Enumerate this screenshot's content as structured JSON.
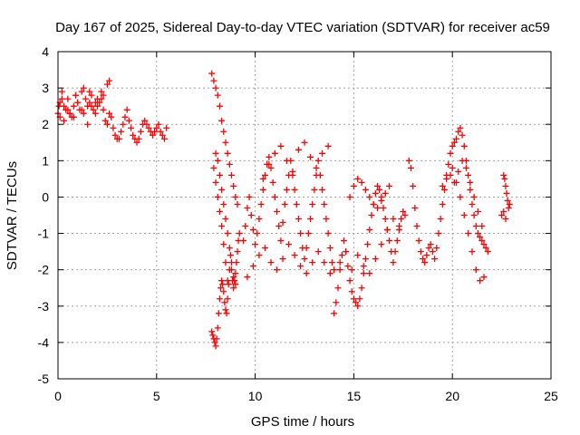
{
  "chart_data": {
    "type": "scatter",
    "title": "Day 167 of 2025, Sidereal Day-to-day VTEC variation (SDTVAR) for receiver ac59",
    "xlabel": "GPS time / hours",
    "ylabel": "SDTVAR / TECUs",
    "xlim": [
      0,
      25
    ],
    "ylim": [
      -5,
      4
    ],
    "xticks": [
      "0",
      "5",
      "10",
      "15",
      "20",
      "25"
    ],
    "yticks": [
      "-5",
      "-4",
      "-3",
      "-2",
      "-1",
      "0",
      "1",
      "2",
      "3",
      "4"
    ],
    "grid": true,
    "marker": "+",
    "color": "#ff0000",
    "series": [
      {
        "name": "SDTVAR",
        "x": [
          0.0,
          0.1,
          0.2,
          0.3,
          0.4,
          0.5,
          0.6,
          0.7,
          0.8,
          0.9,
          1.0,
          1.1,
          1.2,
          1.3,
          1.4,
          1.5,
          1.6,
          1.7,
          1.8,
          1.9,
          2.0,
          2.1,
          2.2,
          2.3,
          2.4,
          2.5,
          2.6,
          2.7,
          2.8,
          2.9,
          3.0,
          3.1,
          3.2,
          3.3,
          3.4,
          3.5,
          3.6,
          3.7,
          3.8,
          3.9,
          4.0,
          4.1,
          4.2,
          4.3,
          4.4,
          4.5,
          4.6,
          4.7,
          4.8,
          4.9,
          5.0,
          5.1,
          5.2,
          5.3,
          5.4,
          5.5,
          0.1,
          0.3,
          0.5,
          0.8,
          1.0,
          1.3,
          1.5,
          1.7,
          2.0,
          2.2,
          2.5,
          2.6,
          0.05,
          0.2,
          0.6,
          0.9,
          1.2,
          1.6,
          1.9,
          2.3,
          7.8,
          7.85,
          7.9,
          7.95,
          8.0,
          8.05,
          8.1,
          8.15,
          8.2,
          8.25,
          8.3,
          8.35,
          8.4,
          8.45,
          8.5,
          8.55,
          8.6,
          8.65,
          8.7,
          8.75,
          8.8,
          8.85,
          8.9,
          8.95,
          9.0,
          9.05,
          9.1,
          9.15,
          9.2,
          8.0,
          8.1,
          8.2,
          8.3,
          8.4,
          8.5,
          8.6,
          8.7,
          8.8,
          8.9,
          9.0,
          7.9,
          8.0,
          8.1,
          8.2,
          8.3,
          8.4,
          8.5,
          8.6,
          7.8,
          7.9,
          8.0,
          8.1,
          8.2,
          8.3,
          8.4,
          8.5,
          8.6,
          8.7,
          8.8,
          8.9,
          9.0,
          9.1,
          9.4,
          9.5,
          9.6,
          9.7,
          9.8,
          9.9,
          10.0,
          10.1,
          10.2,
          10.3,
          10.4,
          10.5,
          10.6,
          10.7,
          10.8,
          10.9,
          11.0,
          11.1,
          11.2,
          11.3,
          11.4,
          11.5,
          11.6,
          11.7,
          11.8,
          11.9,
          12.0,
          12.1,
          12.2,
          12.3,
          12.4,
          12.5,
          12.6,
          12.7,
          12.8,
          12.9,
          13.0,
          13.1,
          13.2,
          13.3,
          13.4,
          13.5,
          13.6,
          13.7,
          13.8,
          13.9,
          14.0,
          9.6,
          9.9,
          10.2,
          10.5,
          10.8,
          11.1,
          11.4,
          11.7,
          12.0,
          12.3,
          12.6,
          12.9,
          13.2,
          13.5,
          13.8,
          10.4,
          10.7,
          11.0,
          11.3,
          11.6,
          11.9,
          12.2,
          12.5,
          12.8,
          13.1,
          13.4,
          13.7,
          14.0,
          14.1,
          14.2,
          14.3,
          14.4,
          14.5,
          14.6,
          14.7,
          14.8,
          14.9,
          15.0,
          15.1,
          15.2,
          15.3,
          15.4,
          15.5,
          15.6,
          15.7,
          15.8,
          15.9,
          16.0,
          16.1,
          16.2,
          16.3,
          16.4,
          16.5,
          16.6,
          16.7,
          16.8,
          16.9,
          17.0,
          17.1,
          17.2,
          17.3,
          17.4,
          17.5,
          17.6,
          14.3,
          14.6,
          14.9,
          15.2,
          15.5,
          15.8,
          16.1,
          16.4,
          16.7,
          17.0,
          17.3,
          14.8,
          15.0,
          15.2,
          15.4,
          15.6,
          15.8,
          16.0,
          16.2,
          16.4,
          16.6,
          16.8,
          17.8,
          17.9,
          18.0,
          18.1,
          18.2,
          18.3,
          18.4,
          18.5,
          18.6,
          18.7,
          18.8,
          18.9,
          19.0,
          19.1,
          19.2,
          19.3,
          19.4,
          19.5,
          19.6,
          19.7,
          19.8,
          19.9,
          20.0,
          20.1,
          20.2,
          20.3,
          20.4,
          20.5,
          20.6,
          20.7,
          20.8,
          20.9,
          21.0,
          21.1,
          21.2,
          21.3,
          21.4,
          21.5,
          21.6,
          21.7,
          21.8,
          19.5,
          19.7,
          19.9,
          20.1,
          20.3,
          20.5,
          20.7,
          20.9,
          21.1,
          21.3,
          21.5,
          20.0,
          20.2,
          20.4,
          20.6,
          20.8,
          21.0,
          21.2,
          21.4,
          21.6,
          22.6,
          22.65,
          22.7,
          22.75,
          22.8,
          22.85,
          22.9,
          22.5,
          22.6,
          22.7
        ],
        "y": [
          2.3,
          2.6,
          2.9,
          2.5,
          2.4,
          2.7,
          2.3,
          2.2,
          2.5,
          2.8,
          2.6,
          2.4,
          2.9,
          3.0,
          2.7,
          2.5,
          2.6,
          2.8,
          2.4,
          2.3,
          2.5,
          2.6,
          2.7,
          2.4,
          2.1,
          2.0,
          2.3,
          2.2,
          1.9,
          1.7,
          1.6,
          1.6,
          1.8,
          2.0,
          2.2,
          2.4,
          2.1,
          1.9,
          1.7,
          1.6,
          1.5,
          1.6,
          1.8,
          2.0,
          2.1,
          2.0,
          1.9,
          1.8,
          1.7,
          1.8,
          1.9,
          2.0,
          1.8,
          1.7,
          1.6,
          1.9,
          2.2,
          2.1,
          2.4,
          2.2,
          2.6,
          2.3,
          2.0,
          2.5,
          2.7,
          2.9,
          3.1,
          3.2,
          2.5,
          2.7,
          2.3,
          2.8,
          2.4,
          2.9,
          2.6,
          2.8,
          -3.7,
          -3.8,
          -3.9,
          -4.0,
          -4.1,
          -3.9,
          -3.6,
          -3.2,
          -2.8,
          -2.5,
          -2.3,
          -2.4,
          -2.6,
          -2.9,
          -3.1,
          -3.2,
          -2.8,
          -2.4,
          -2.0,
          -1.6,
          -2.0,
          -2.3,
          -2.5,
          -2.3,
          -2.1,
          -1.8,
          -1.5,
          -1.2,
          -1.0,
          1.2,
          1.0,
          0.6,
          0.2,
          -0.2,
          -0.6,
          -1.0,
          -1.4,
          -1.8,
          -2.2,
          -2.4,
          0.8,
          0.4,
          0.0,
          -0.4,
          -0.8,
          -1.3,
          -1.8,
          -2.3,
          3.4,
          3.2,
          3.0,
          2.8,
          2.5,
          2.1,
          1.8,
          1.5,
          1.2,
          0.9,
          0.6,
          0.3,
          0.0,
          -0.2,
          -1.2,
          -0.8,
          -0.3,
          0.0,
          -0.5,
          -0.9,
          -1.3,
          -1.0,
          -0.6,
          -0.2,
          0.2,
          0.6,
          0.9,
          1.1,
          0.8,
          0.4,
          0.0,
          -0.4,
          -0.8,
          -1.2,
          -0.7,
          -0.2,
          0.2,
          0.6,
          1.0,
          0.6,
          0.2,
          -0.2,
          -0.6,
          -1.0,
          -1.4,
          -1.7,
          -1.4,
          -1.0,
          -0.6,
          -0.2,
          0.2,
          0.6,
          1.0,
          0.6,
          0.2,
          -0.2,
          -0.6,
          -1.0,
          -1.4,
          -1.8,
          -2.0,
          -2.2,
          -1.9,
          -1.6,
          -1.4,
          -1.8,
          -2.0,
          -1.7,
          -1.3,
          -1.6,
          -1.9,
          -2.1,
          -1.8,
          -1.5,
          -1.8,
          -2.1,
          0.5,
          0.9,
          1.2,
          1.4,
          1.0,
          0.7,
          1.3,
          1.5,
          1.1,
          0.8,
          1.2,
          1.4,
          -3.2,
          -2.9,
          -2.5,
          -2.0,
          -1.6,
          -1.2,
          -1.5,
          -1.9,
          -2.3,
          -2.6,
          -2.8,
          -2.9,
          -3.0,
          -2.8,
          -2.5,
          -2.1,
          -1.7,
          -1.3,
          -0.9,
          -0.5,
          -0.2,
          0.1,
          0.3,
          0.2,
          0.0,
          -0.3,
          -0.6,
          -0.9,
          -1.2,
          -1.5,
          -1.8,
          -1.5,
          -1.2,
          -0.9,
          -0.6,
          -0.4,
          -0.5,
          -1.8,
          -1.5,
          -2.0,
          -1.6,
          -1.9,
          -2.1,
          -1.7,
          -1.3,
          -0.9,
          -0.6,
          -0.8,
          0.0,
          0.3,
          0.5,
          0.4,
          0.2,
          0.0,
          -0.2,
          -0.3,
          -0.1,
          0.1,
          0.3,
          1.0,
          0.8,
          0.3,
          -0.3,
          -0.8,
          -1.2,
          -1.5,
          -1.7,
          -1.8,
          -1.6,
          -1.4,
          -1.3,
          -1.5,
          -1.7,
          -1.4,
          -1.0,
          -0.6,
          -0.2,
          0.2,
          0.6,
          0.9,
          1.2,
          1.4,
          1.5,
          1.6,
          1.8,
          1.9,
          1.7,
          1.4,
          1.0,
          0.6,
          0.2,
          -0.2,
          -0.5,
          -0.8,
          -1.0,
          -1.1,
          -1.2,
          -1.3,
          -1.4,
          -1.5,
          0.3,
          0.5,
          0.6,
          0.4,
          0.7,
          1.0,
          0.8,
          0.4,
          0.0,
          -0.4,
          -0.8,
          0.8,
          0.4,
          0.0,
          -0.5,
          -1.0,
          -1.5,
          -2.0,
          -2.3,
          -2.2,
          0.6,
          0.5,
          0.3,
          0.1,
          -0.1,
          -0.3,
          -0.2,
          -0.5,
          -0.4,
          -0.6
        ]
      }
    ]
  }
}
